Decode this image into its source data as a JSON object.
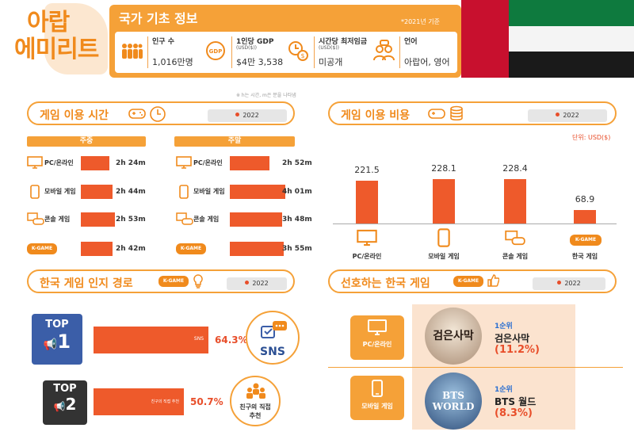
{
  "header": {
    "country_line1": "아랍",
    "country_line2": "에미리트",
    "info_title": "국가 기초 정보",
    "info_note": "*2021년 기준",
    "cells": [
      {
        "icon": "people-icon",
        "label": "인구 수",
        "sub": "",
        "value": "1,016만명"
      },
      {
        "icon": "gdp-globe-icon",
        "label": "1인당 GDP",
        "sub": "(USD($))",
        "value": "$4만 3,538"
      },
      {
        "icon": "clock-coin-icon",
        "label": "시간당 최저임금",
        "sub": "(USD($))",
        "value": "미공개"
      },
      {
        "icon": "chat-people-icon",
        "label": "언어",
        "sub": "",
        "value": "아랍어, 영어"
      }
    ],
    "flag_colors": {
      "red": "#c8102e",
      "green": "#0e7a3e",
      "white": "#f4f4f4",
      "black": "#1a1a1a"
    }
  },
  "time_note": "※ h는 시간, m은 분을 나타냄",
  "play_time": {
    "title": "게임 이용 시간",
    "year": "2022",
    "weekday_label": "주중",
    "weekend_label": "주말",
    "rows": [
      {
        "label": "PC/온라인",
        "icon": "monitor-icon",
        "weekday": "2h 24m",
        "weekend": "2h 52m",
        "weekday_min": 144,
        "weekend_min": 172
      },
      {
        "label": "모바일 게임",
        "icon": "phone-icon",
        "weekday": "2h 44m",
        "weekend": "4h 01m",
        "weekday_min": 164,
        "weekend_min": 241
      },
      {
        "label": "콘솔 게임",
        "icon": "console-icon",
        "weekday": "2h 53m",
        "weekend": "3h 48m",
        "weekday_min": 173,
        "weekend_min": 228
      },
      {
        "label": "K-GAME",
        "icon": "kgame-icon",
        "weekday": "2h 42m",
        "weekend": "3h 55m",
        "weekday_min": 162,
        "weekend_min": 235
      }
    ]
  },
  "spending": {
    "title": "게임 이용 비용",
    "year": "2022",
    "unit": "단위: USD($)",
    "items": [
      {
        "label": "PC/온라인",
        "value": 221.5,
        "display": "221.5",
        "icon": "monitor-icon"
      },
      {
        "label": "모바일 게임",
        "value": 228.1,
        "display": "228.1",
        "icon": "phone-icon"
      },
      {
        "label": "콘솔 게임",
        "value": 228.4,
        "display": "228.4",
        "icon": "console-icon"
      },
      {
        "label": "한국 게임",
        "value": 68.9,
        "display": "68.9",
        "icon": "kgame-icon"
      }
    ]
  },
  "recognition": {
    "title": "한국 게임 인지 경로",
    "year": "2022",
    "items": [
      {
        "rank_top": "TOP",
        "rank_num": "1",
        "bar_label": "SNS",
        "pct": "64.3%",
        "value": 64.3,
        "circle_label": "SNS",
        "color": "#3b5ea8"
      },
      {
        "rank_top": "TOP",
        "rank_num": "2",
        "bar_label": "친구의 직접 추천",
        "pct": "50.7%",
        "value": 50.7,
        "circle_label": "친구의 직접 추천",
        "color": "#333333"
      }
    ]
  },
  "preferred": {
    "title": "선호하는 한국 게임",
    "year": "2022",
    "rows": [
      {
        "platform": "PC/온라인",
        "rank": "1순위",
        "game": "검은사막",
        "pct": "(11.2%)",
        "art_text": "검은사막"
      },
      {
        "platform": "모바일 게임",
        "rank": "1순위",
        "game": "BTS 월드",
        "pct": "(8.3%)",
        "art_text": "BTS WORLD"
      }
    ]
  },
  "kgame_label": "K-GAME",
  "colors": {
    "accent": "#f5a138",
    "bar": "#ee5a2b",
    "title": "#f08a1c"
  }
}
